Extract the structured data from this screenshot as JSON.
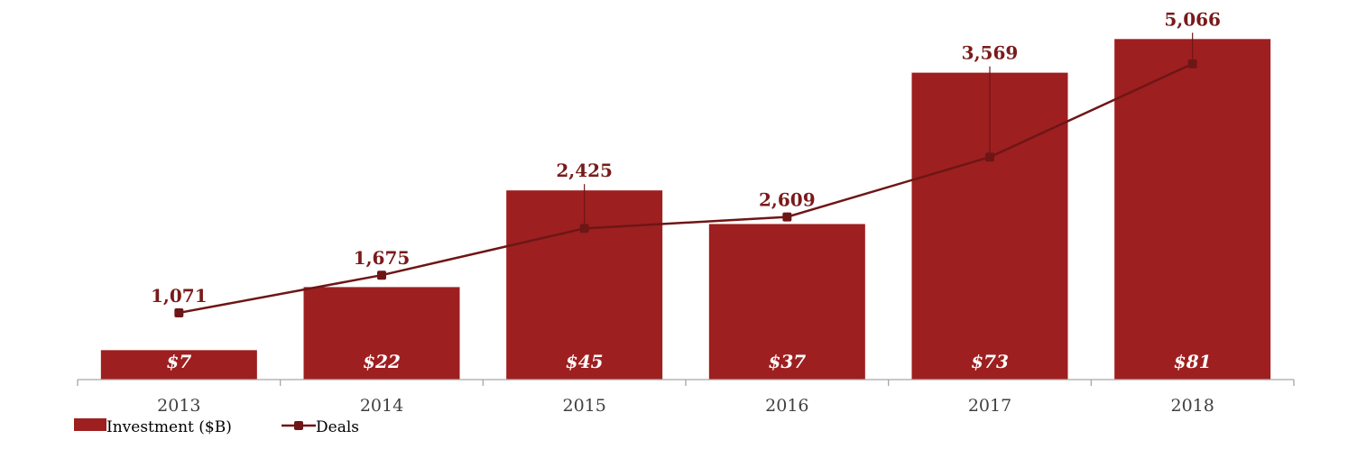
{
  "chart_data": {
    "type": "bar",
    "categories": [
      "2013",
      "2014",
      "2015",
      "2016",
      "2017",
      "2018"
    ],
    "series": [
      {
        "name": "Investment ($B)",
        "type": "bar",
        "values": [
          7,
          22,
          45,
          37,
          73,
          81
        ],
        "labels": [
          "$7",
          "$22",
          "$45",
          "$37",
          "$73",
          "$81"
        ]
      },
      {
        "name": "Deals",
        "type": "line",
        "values": [
          1071,
          1675,
          2425,
          2609,
          3569,
          5066
        ],
        "labels": [
          "1,071",
          "1,675",
          "2,425",
          "2,609",
          "3,569",
          "5,066"
        ]
      }
    ],
    "title": "",
    "xlabel": "",
    "ylabel": "",
    "bar_ylim": [
      0,
      86
    ],
    "line_ylim": [
      0,
      5800
    ],
    "grid": false,
    "legend_position": "bottom-left",
    "colors": {
      "bar": "#9e1f20",
      "line": "#6e1616",
      "deal_label": "#7a1a1a",
      "bar_label": "#ffffff",
      "axis": "#a6a6a6",
      "tick_label": "#404040"
    }
  }
}
